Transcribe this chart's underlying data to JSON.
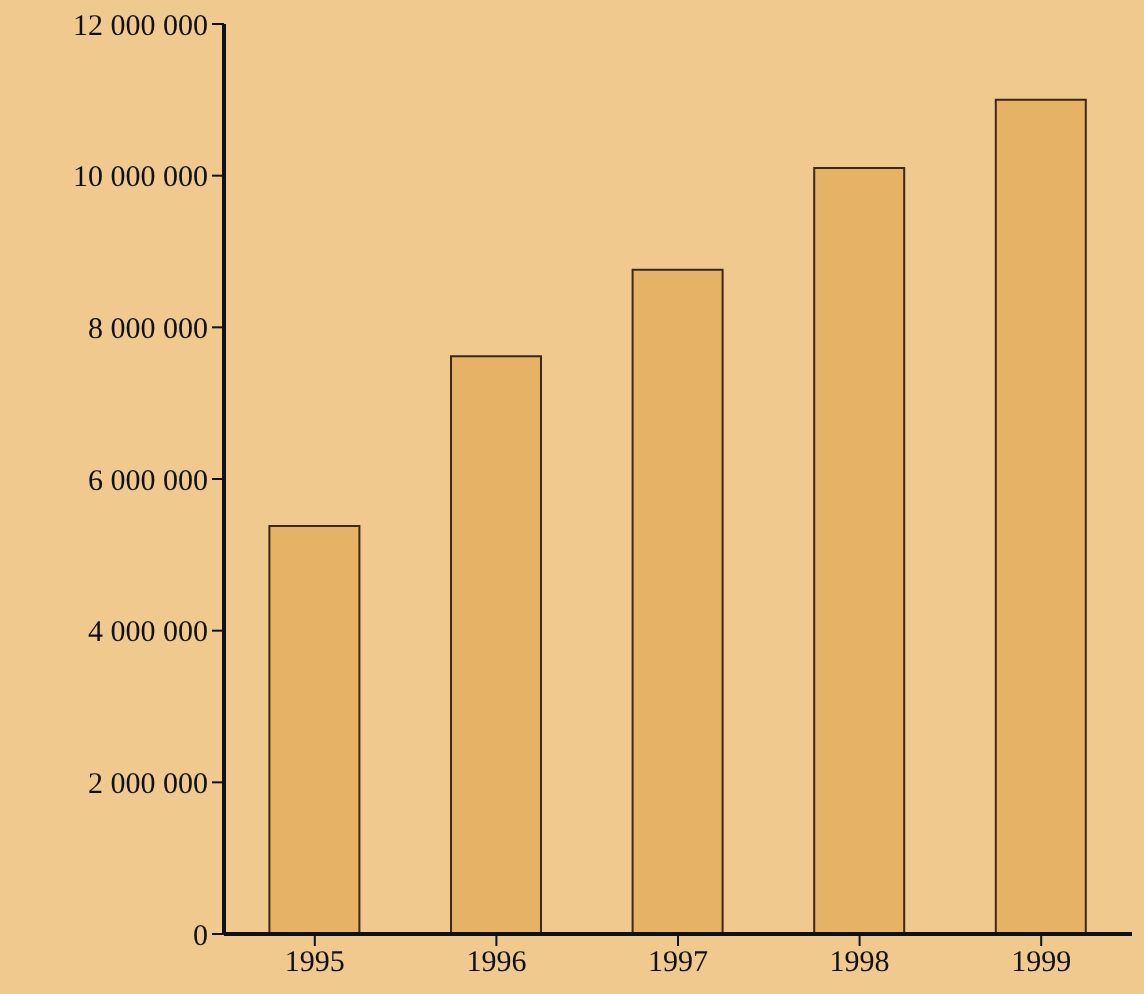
{
  "chart_data": {
    "type": "bar",
    "categories": [
      "1995",
      "1996",
      "1997",
      "1998",
      "1999"
    ],
    "values": [
      5380000,
      7620000,
      8760000,
      10100000,
      11000000
    ],
    "color": "#e6b266",
    "ylim": [
      0,
      12000000
    ],
    "yticks": [
      {
        "value": 0,
        "label": "0"
      },
      {
        "value": 2000000,
        "label": "2 000 000"
      },
      {
        "value": 4000000,
        "label": "4 000 000"
      },
      {
        "value": 6000000,
        "label": "6 000 000"
      },
      {
        "value": 8000000,
        "label": "8 000 000"
      },
      {
        "value": 10000000,
        "label": "10 000 000"
      },
      {
        "value": 12000000,
        "label": "12 000 000"
      }
    ],
    "grid": false
  }
}
